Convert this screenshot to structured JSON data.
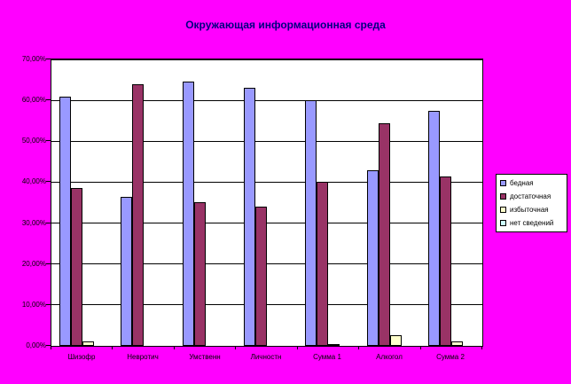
{
  "title": "Окружающая информационная среда",
  "colors": {
    "background": "#FF00FF",
    "title_text": "#000080",
    "plot_background": "#FFFFFF",
    "gridline": "#000000",
    "axis": "#000000"
  },
  "chart_data": {
    "type": "bar",
    "title": "Окружающая информационная среда",
    "categories": [
      "Шизофр",
      "Невротич",
      "Умственн",
      "Личностн",
      "Сумма 1",
      "Алкогол",
      "Сумма 2"
    ],
    "series": [
      {
        "name": "бедная",
        "color": "#9999FF",
        "values": [
          61,
          36.5,
          64.5,
          63,
          60,
          43,
          57.5
        ]
      },
      {
        "name": "достаточная",
        "color": "#993366",
        "values": [
          38.5,
          64,
          35,
          34,
          40,
          54.5,
          41.5
        ]
      },
      {
        "name": "избыточная",
        "color": "#FFFFCC",
        "values": [
          1,
          0,
          0,
          0,
          0.5,
          2.5,
          1
        ]
      },
      {
        "name": "нет сведений",
        "color": "#CCFFFF",
        "values": [
          0,
          0,
          0,
          0,
          0,
          0,
          0
        ]
      }
    ],
    "xlabel": "",
    "ylabel": "",
    "ylim": [
      0,
      70
    ],
    "y_tick_step": 10,
    "y_tick_labels": [
      "0,00%",
      "10,00%",
      "20,00%",
      "30,00%",
      "40,00%",
      "50,00%",
      "60,00%",
      "70,00%"
    ],
    "grid": true,
    "legend_position": "right"
  },
  "legend": {
    "items": [
      {
        "label": "бедная",
        "color": "#9999FF"
      },
      {
        "label": "достаточная",
        "color": "#993366"
      },
      {
        "label": "избыточная",
        "color": "#FFFFCC"
      },
      {
        "label": "нет сведений",
        "color": "#CCFFFF"
      }
    ]
  }
}
